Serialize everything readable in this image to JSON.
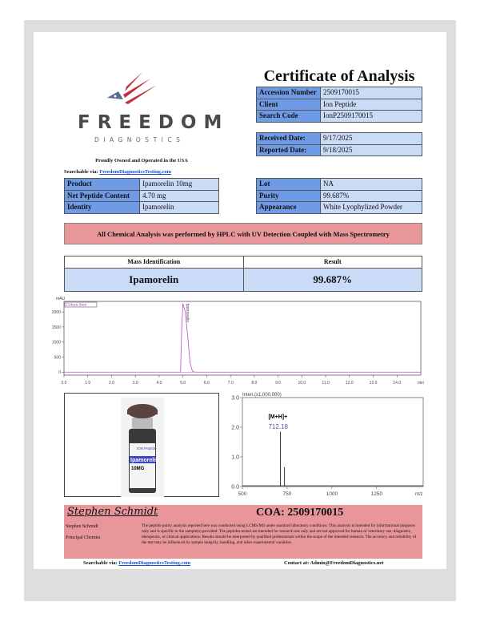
{
  "header": {
    "title": "Certificate of Analysis",
    "tagline": "Proudly Owned and Operated in the USA",
    "searchable_label": "Searchable via:",
    "searchable_link": "FreedomDiagnosticsTesting.com"
  },
  "logo": {
    "word": "FREEDOM",
    "sub": "DIAGNOSTICS",
    "colors": {
      "stripes": "#c0303a",
      "star": "#5a6b8c",
      "text": "#4a4a4a"
    }
  },
  "accession": [
    {
      "label": "Accession Number",
      "value": "2509170015"
    },
    {
      "label": "Client",
      "value": "Ion Peptide"
    },
    {
      "label": "Search Code",
      "value": "IonP2509170015"
    }
  ],
  "dates": [
    {
      "label": "Received Date:",
      "value": "9/17/2025"
    },
    {
      "label": "Reported Date:",
      "value": "9/18/2025"
    }
  ],
  "product": [
    {
      "label": "Product",
      "value": "Ipamorelin 10mg"
    },
    {
      "label": "Net Peptide Content",
      "value": "4.70 mg"
    },
    {
      "label": "Identity",
      "value": "Ipamorelin"
    }
  ],
  "lot": [
    {
      "label": "Lot",
      "value": "NA"
    },
    {
      "label": "Purity",
      "value": "99.687%"
    },
    {
      "label": "Appearance",
      "value": "White Lyophylized Powder"
    }
  ],
  "banner": "All Chemical Analysis was performed by HPLC with UV Detection Coupled with Mass Spectrometry",
  "mass": {
    "col1": "Mass Identification",
    "col2": "Result",
    "name": "Ipamorelin",
    "result": "99.687%"
  },
  "vial": {
    "brand": "ION Peptide",
    "label": "Ipamorelin",
    "dose": "10MG"
  },
  "chart_data": [
    {
      "type": "line",
      "ylabel": "mAU",
      "xlabel": "min",
      "legend": "214nm,4nm",
      "peak_label": "Ipamorelin",
      "xlim": [
        0,
        15
      ],
      "ylim": [
        -100,
        2350
      ],
      "xticks": [
        "0.0",
        "1.0",
        "2.0",
        "3.0",
        "4.0",
        "5.0",
        "6.0",
        "7.0",
        "8.0",
        "9.0",
        "10.0",
        "11.0",
        "12.0",
        "13.0",
        "14.0"
      ],
      "yticks": [
        "0",
        "500",
        "1000",
        "1500",
        "2000"
      ],
      "x": [
        0,
        4.9,
        4.95,
        5.0,
        5.1,
        5.2,
        5.3,
        5.4,
        5.5,
        15
      ],
      "y": [
        0,
        0,
        1500,
        2280,
        2000,
        1200,
        300,
        30,
        0,
        0
      ],
      "color": "#cc44cc"
    },
    {
      "type": "bar",
      "ylabel": "Inten.(x1,000,000)",
      "xlabel": "m/z",
      "xlim": [
        500,
        1510
      ],
      "ylim": [
        0,
        3.0
      ],
      "xticks": [
        "500",
        "750",
        "1000",
        "1250"
      ],
      "yticks": [
        "0.0",
        "1.0",
        "2.0",
        "3.0"
      ],
      "annotation": "[M+H]+",
      "peak_label": "712.18",
      "x": [
        712.18,
        735
      ],
      "values": [
        1.85,
        0.65
      ]
    }
  ],
  "footer": {
    "signature": "Stephen Schmidt",
    "coa": "COA: 2509170015",
    "name": "Stephen Schmidt",
    "role": "Principal Chemist",
    "disclaimer": "The peptide purity analysis reported here was conducted using LCMS/MS under standard laboratory conditions. This analysis is intended for informational purposes only and is specific to the sample(s) provided. The peptides tested are intended for research use only and are not approved for human or veterinary use, diagnostic, therapeutic, or clinical applications. Results should be interpreted by qualified professionals within the scope of the intended research. The accuracy and reliability of the test may be influenced by sample integrity, handling, and other experimental variables.",
    "searchable_label": "Searchable via:",
    "searchable_link": "FreedomDiagnosticsTesting.com",
    "contact_label": "Contact at:",
    "contact": "Admin@FreedomDiagnostics.net"
  }
}
